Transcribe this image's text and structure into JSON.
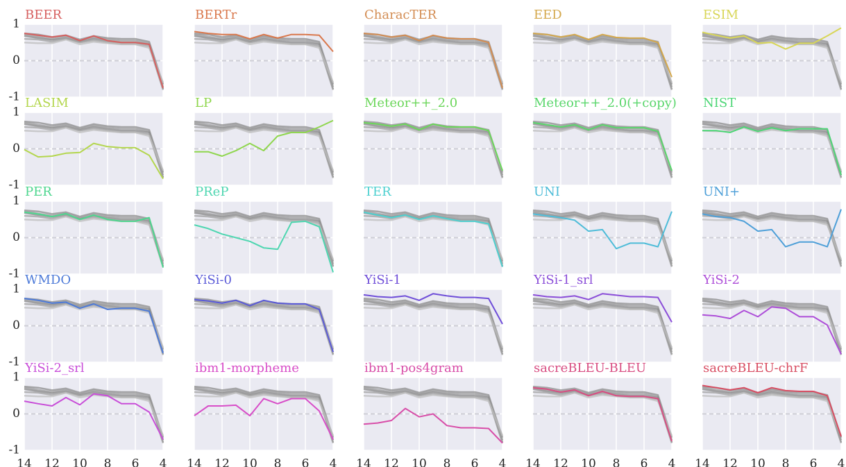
{
  "chart_data": {
    "type": "line",
    "x": [
      14,
      13,
      12,
      11,
      10,
      9,
      8,
      7,
      6,
      5,
      4
    ],
    "xlim": [
      14,
      4
    ],
    "ylim": [
      -1,
      1
    ],
    "xticks": [
      14,
      12,
      10,
      8,
      6,
      4
    ],
    "yticks": [
      -1,
      0,
      1
    ],
    "grid": true,
    "hline": 0,
    "background_series": [
      {
        "color": "#8c8c8c",
        "values": [
          0.75,
          0.72,
          0.65,
          0.7,
          0.58,
          0.68,
          0.62,
          0.6,
          0.6,
          0.52,
          -0.65
        ]
      },
      {
        "color": "#999999",
        "values": [
          0.72,
          0.66,
          0.6,
          0.66,
          0.55,
          0.64,
          0.58,
          0.55,
          0.55,
          0.48,
          -0.72
        ]
      },
      {
        "color": "#8a8a8a",
        "values": [
          0.68,
          0.62,
          0.57,
          0.62,
          0.52,
          0.6,
          0.54,
          0.5,
          0.5,
          0.45,
          -0.78
        ]
      },
      {
        "color": "#a0a0a0",
        "values": [
          0.6,
          0.58,
          0.52,
          0.6,
          0.5,
          0.56,
          0.5,
          0.46,
          0.46,
          0.4,
          -0.8
        ]
      },
      {
        "color": "#bdbdbd",
        "values": [
          0.5,
          0.48,
          0.48,
          0.58,
          0.45,
          0.52,
          0.48,
          0.45,
          0.45,
          0.35,
          -0.6
        ]
      }
    ],
    "panels": [
      {
        "title": "BEER",
        "color": "#d65f5f",
        "values": [
          0.75,
          0.7,
          0.65,
          0.7,
          0.55,
          0.68,
          0.55,
          0.5,
          0.5,
          0.45,
          -0.75
        ]
      },
      {
        "title": "BERTr",
        "color": "#d9774b",
        "values": [
          0.8,
          0.75,
          0.72,
          0.72,
          0.6,
          0.72,
          0.62,
          0.72,
          0.72,
          0.7,
          0.25
        ]
      },
      {
        "title": "CharacTER",
        "color": "#d38c52",
        "values": [
          0.75,
          0.72,
          0.65,
          0.7,
          0.55,
          0.7,
          0.62,
          0.6,
          0.6,
          0.5,
          -0.75
        ]
      },
      {
        "title": "EED",
        "color": "#d4a84c",
        "values": [
          0.75,
          0.72,
          0.65,
          0.72,
          0.58,
          0.72,
          0.64,
          0.62,
          0.62,
          0.5,
          -0.45
        ]
      },
      {
        "title": "ESIM",
        "color": "#d8d656",
        "values": [
          0.78,
          0.7,
          0.62,
          0.68,
          0.48,
          0.5,
          0.32,
          0.48,
          0.48,
          0.68,
          0.9
        ]
      },
      {
        "title": "LASIM",
        "color": "#b3d64c",
        "values": [
          -0.02,
          -0.22,
          -0.2,
          -0.12,
          -0.1,
          0.15,
          0.06,
          0.03,
          0.03,
          -0.18,
          -0.82
        ]
      },
      {
        "title": "LP",
        "color": "#8ed64c",
        "values": [
          -0.08,
          -0.08,
          -0.2,
          -0.05,
          0.15,
          -0.05,
          0.35,
          0.45,
          0.45,
          0.6,
          0.78
        ]
      },
      {
        "title": "Meteor++_2.0",
        "color": "#6bd65a",
        "values": [
          0.72,
          0.68,
          0.62,
          0.68,
          0.52,
          0.68,
          0.6,
          0.6,
          0.6,
          0.5,
          -0.6
        ]
      },
      {
        "title": "Meteor++_2.0(+copy)",
        "color": "#59d66b",
        "values": [
          0.72,
          0.66,
          0.6,
          0.66,
          0.52,
          0.66,
          0.58,
          0.58,
          0.58,
          0.48,
          -0.6
        ]
      },
      {
        "title": "NIST",
        "color": "#4dd676",
        "values": [
          0.5,
          0.5,
          0.45,
          0.6,
          0.48,
          0.58,
          0.5,
          0.55,
          0.55,
          0.55,
          -0.72
        ]
      },
      {
        "title": "PER",
        "color": "#4dd68e",
        "values": [
          0.7,
          0.65,
          0.58,
          0.66,
          0.5,
          0.62,
          0.5,
          0.45,
          0.45,
          0.55,
          -0.82
        ]
      },
      {
        "title": "PReP",
        "color": "#4dd6b0",
        "values": [
          0.35,
          0.25,
          0.1,
          0,
          -0.1,
          -0.28,
          -0.32,
          0.42,
          0.45,
          0.3,
          -0.95
        ]
      },
      {
        "title": "TER",
        "color": "#4dd0d0",
        "values": [
          0.7,
          0.62,
          0.55,
          0.62,
          0.5,
          0.6,
          0.52,
          0.45,
          0.45,
          0.38,
          -0.8
        ]
      },
      {
        "title": "UNI",
        "color": "#4dbcd8",
        "values": [
          0.65,
          0.6,
          0.55,
          0.48,
          0.18,
          0.22,
          -0.3,
          -0.15,
          -0.15,
          -0.25,
          0.72
        ]
      },
      {
        "title": "UNI+",
        "color": "#4d9fd8",
        "values": [
          0.65,
          0.58,
          0.55,
          0.45,
          0.18,
          0.22,
          -0.25,
          -0.12,
          -0.12,
          -0.25,
          0.78
        ]
      },
      {
        "title": "WMDO",
        "color": "#4d7ad8",
        "values": [
          0.75,
          0.7,
          0.62,
          0.65,
          0.48,
          0.6,
          0.45,
          0.48,
          0.48,
          0.4,
          -0.75
        ]
      },
      {
        "title": "YiSi-0",
        "color": "#5a5ad8",
        "values": [
          0.72,
          0.68,
          0.62,
          0.7,
          0.55,
          0.7,
          0.62,
          0.6,
          0.6,
          0.45,
          -0.72
        ]
      },
      {
        "title": "YiSi-1",
        "color": "#6e4dd8",
        "values": [
          0.85,
          0.8,
          0.78,
          0.82,
          0.7,
          0.88,
          0.82,
          0.78,
          0.78,
          0.75,
          0.05
        ]
      },
      {
        "title": "YiSi-1_srl",
        "color": "#8a4dd8",
        "values": [
          0.85,
          0.8,
          0.78,
          0.82,
          0.72,
          0.88,
          0.84,
          0.8,
          0.8,
          0.78,
          0.1
        ]
      },
      {
        "title": "YiSi-2",
        "color": "#ad4dd8",
        "values": [
          0.3,
          0.27,
          0.2,
          0.42,
          0.25,
          0.52,
          0.48,
          0.25,
          0.25,
          0.02,
          -0.78
        ]
      },
      {
        "title": "YiSi-2_srl",
        "color": "#c84dd8",
        "values": [
          0.35,
          0.28,
          0.22,
          0.45,
          0.25,
          0.55,
          0.5,
          0.28,
          0.28,
          0.05,
          -0.7
        ]
      },
      {
        "title": "ibm1-morpheme",
        "color": "#d84dc8",
        "values": [
          -0.05,
          0.22,
          0.22,
          0.24,
          -0.05,
          0.42,
          0.28,
          0.42,
          0.42,
          0.08,
          -0.7
        ]
      },
      {
        "title": "ibm1-pos4gram",
        "color": "#d84da8",
        "values": [
          -0.28,
          -0.25,
          -0.18,
          0.15,
          -0.08,
          0,
          -0.32,
          -0.38,
          -0.38,
          -0.4,
          -0.8
        ]
      },
      {
        "title": "sacreBLEU-BLEU",
        "color": "#d84d82",
        "values": [
          0.72,
          0.68,
          0.6,
          0.66,
          0.5,
          0.62,
          0.5,
          0.48,
          0.48,
          0.42,
          -0.75
        ]
      },
      {
        "title": "sacreBLEU-chrF",
        "color": "#d84d62",
        "values": [
          0.78,
          0.72,
          0.66,
          0.72,
          0.58,
          0.72,
          0.64,
          0.62,
          0.62,
          0.5,
          -0.62
        ]
      }
    ]
  }
}
